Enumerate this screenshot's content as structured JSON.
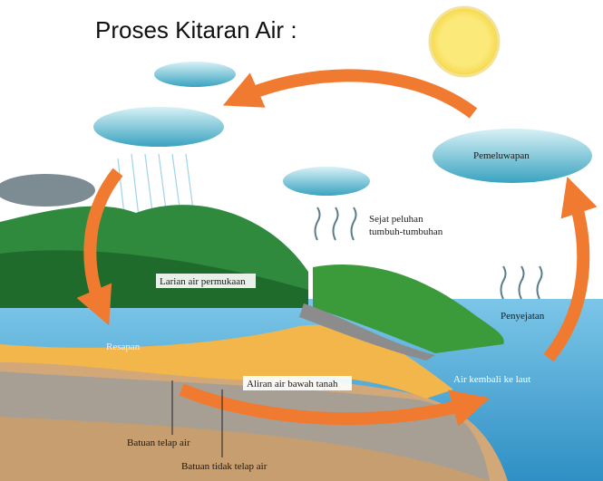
{
  "title": "Proses Kitaran Air :",
  "labels": {
    "condensation": "Pemeluwapan",
    "transpiration_1": "Sejat peluhan",
    "transpiration_2": "tumbuh-tumbuhan",
    "runoff": "Larian air permukaan",
    "evaporation": "Penyejatan",
    "infiltration": "Resapan",
    "groundwater": "Aliran air bawah tanah",
    "return": "Air kembali ke laut",
    "permeable": "Batuan telap air",
    "impermeable": "Batuan tidak telap air"
  }
}
